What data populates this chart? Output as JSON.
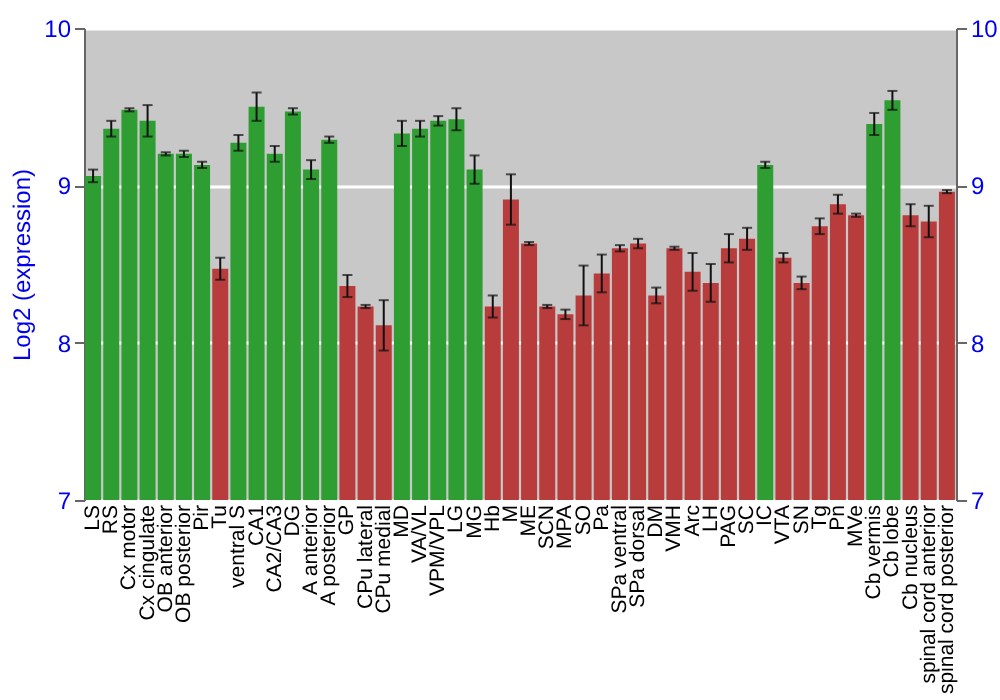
{
  "chart_data": {
    "type": "bar",
    "ylabel": "Log2 (expression)",
    "categories": [
      "LS",
      "RS",
      "Cx motor",
      "Cx cingulate",
      "OB anterior",
      "OB posterior",
      "Pir",
      "Tu",
      "ventral S",
      "CA1",
      "CA2/CA3",
      "DG",
      "A anterior",
      "A posterior",
      "GP",
      "CPu lateral",
      "CPu medial",
      "MD",
      "VA/VL",
      "VPM/VPL",
      "LG",
      "MG",
      "Hb",
      "M",
      "ME",
      "SCN",
      "MPA",
      "SO",
      "Pa",
      "SPa ventral",
      "SPa dorsal",
      "DM",
      "VMH",
      "Arc",
      "LH",
      "PAG",
      "SC",
      "IC",
      "VTA",
      "SN",
      "Tg",
      "Pn",
      "MVe",
      "Cb vermis",
      "Cb lobe",
      "Cb nucleus",
      "spinal cord anterior",
      "spinal cord posterior"
    ],
    "values": [
      9.06,
      9.36,
      9.48,
      9.41,
      9.2,
      9.2,
      9.13,
      8.47,
      9.27,
      9.5,
      9.2,
      9.47,
      9.1,
      9.29,
      8.36,
      8.23,
      8.11,
      9.33,
      9.36,
      9.41,
      9.42,
      9.1,
      8.23,
      8.91,
      8.63,
      8.23,
      8.18,
      8.3,
      8.44,
      8.6,
      8.63,
      8.3,
      8.6,
      8.45,
      8.38,
      8.6,
      8.66,
      9.13,
      8.54,
      8.38,
      8.74,
      8.88,
      8.81,
      9.39,
      9.54,
      8.81,
      8.77,
      8.96
    ],
    "errors": [
      0.04,
      0.05,
      0.01,
      0.1,
      0.01,
      0.02,
      0.02,
      0.07,
      0.05,
      0.09,
      0.05,
      0.02,
      0.06,
      0.02,
      0.07,
      0.01,
      0.16,
      0.08,
      0.05,
      0.03,
      0.07,
      0.09,
      0.07,
      0.16,
      0.01,
      0.01,
      0.03,
      0.19,
      0.12,
      0.02,
      0.03,
      0.05,
      0.01,
      0.12,
      0.12,
      0.09,
      0.07,
      0.02,
      0.03,
      0.04,
      0.05,
      0.06,
      0.01,
      0.07,
      0.06,
      0.07,
      0.1,
      0.01
    ],
    "colors": [
      "#2e9e33",
      "#2e9e33",
      "#2e9e33",
      "#2e9e33",
      "#2e9e33",
      "#2e9e33",
      "#2e9e33",
      "#b83c3c",
      "#2e9e33",
      "#2e9e33",
      "#2e9e33",
      "#2e9e33",
      "#2e9e33",
      "#2e9e33",
      "#b83c3c",
      "#b83c3c",
      "#b83c3c",
      "#2e9e33",
      "#2e9e33",
      "#2e9e33",
      "#2e9e33",
      "#2e9e33",
      "#b83c3c",
      "#b83c3c",
      "#b83c3c",
      "#b83c3c",
      "#b83c3c",
      "#b83c3c",
      "#b83c3c",
      "#b83c3c",
      "#b83c3c",
      "#b83c3c",
      "#b83c3c",
      "#b83c3c",
      "#b83c3c",
      "#b83c3c",
      "#b83c3c",
      "#2e9e33",
      "#b83c3c",
      "#b83c3c",
      "#b83c3c",
      "#b83c3c",
      "#b83c3c",
      "#2e9e33",
      "#2e9e33",
      "#b83c3c",
      "#b83c3c",
      "#b83c3c"
    ],
    "ylim": [
      7,
      10
    ],
    "yticks": [
      7,
      8,
      9,
      10
    ],
    "y2lim": [
      7,
      10
    ],
    "y2ticks": [
      7,
      8,
      9,
      10
    ],
    "grid": true
  }
}
